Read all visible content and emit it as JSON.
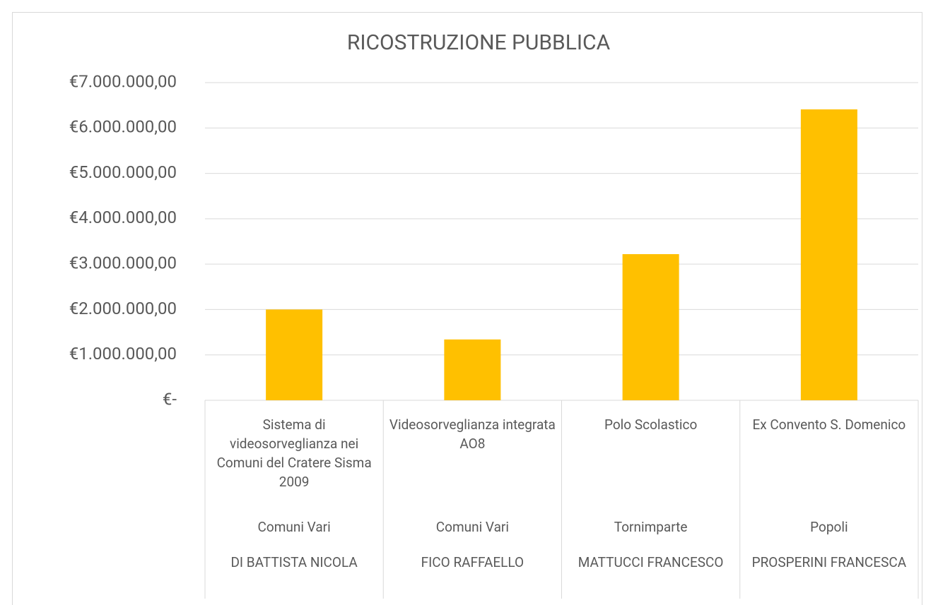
{
  "chart_data": {
    "type": "bar",
    "title": "RICOSTRUZIONE PUBBLICA",
    "categories": [
      [
        "Sistema di videosorveglianza nei Comuni del Cratere Sisma 2009",
        "Comuni Vari",
        "DI BATTISTA NICOLA"
      ],
      [
        "Videosorveglianza integrata AO8",
        "Comuni Vari",
        "FICO RAFFAELLO"
      ],
      [
        "Polo Scolastico",
        "Tornimparte",
        "MATTUCCI FRANCESCO"
      ],
      [
        "Ex Convento S. Domenico",
        "Popoli",
        "PROSPERINI FRANCESCA"
      ]
    ],
    "values": [
      2000000,
      1340000,
      3220000,
      6410000
    ],
    "color": "#ffc000",
    "ylim": [
      0,
      7000000
    ],
    "yticks": [
      {
        "value": 0,
        "label": "€-"
      },
      {
        "value": 1000000,
        "label": "€1.000.000,00"
      },
      {
        "value": 2000000,
        "label": "€2.000.000,00"
      },
      {
        "value": 3000000,
        "label": "€3.000.000,00"
      },
      {
        "value": 4000000,
        "label": "€4.000.000,00"
      },
      {
        "value": 5000000,
        "label": "€5.000.000,00"
      },
      {
        "value": 6000000,
        "label": "€6.000.000,00"
      },
      {
        "value": 7000000,
        "label": "€7.000.000,00"
      }
    ],
    "grid": true
  }
}
